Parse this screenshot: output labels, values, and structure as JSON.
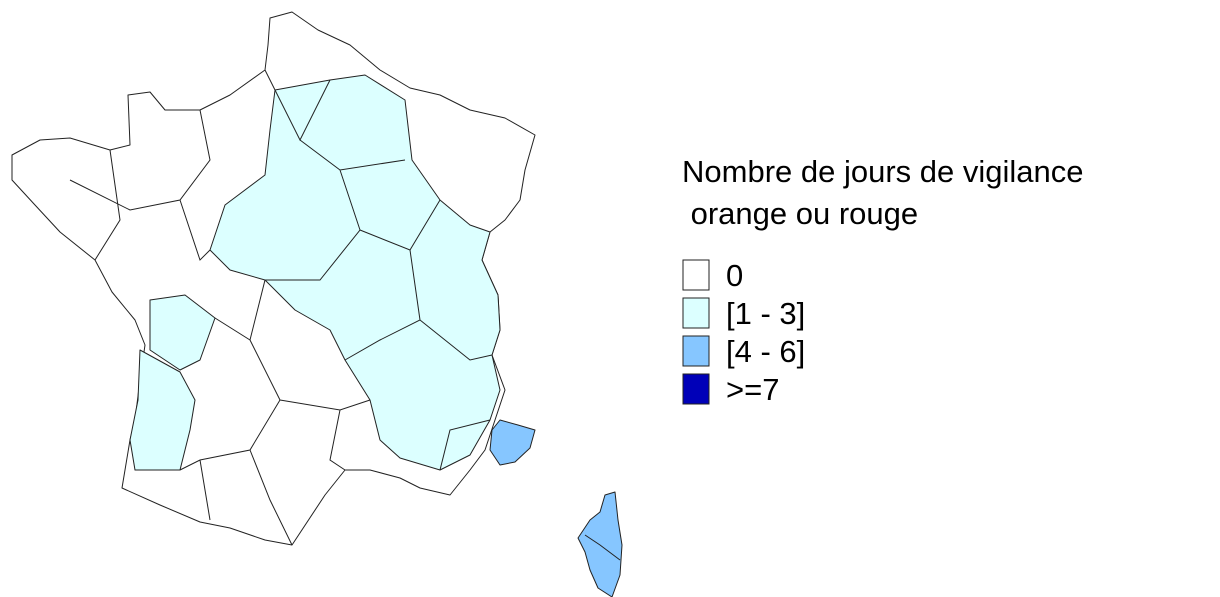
{
  "legend": {
    "title_lines": [
      "Nombre de jours de vigilance",
      " orange ou rouge"
    ],
    "items": [
      {
        "label": "0",
        "color": "#ffffff"
      },
      {
        "label": "[1 - 3]",
        "color": "#dcffff"
      },
      {
        "label": "[4 - 6]",
        "color": "#86c6ff"
      },
      {
        "label": ">=7",
        "color": "#0000b8"
      }
    ]
  }
}
